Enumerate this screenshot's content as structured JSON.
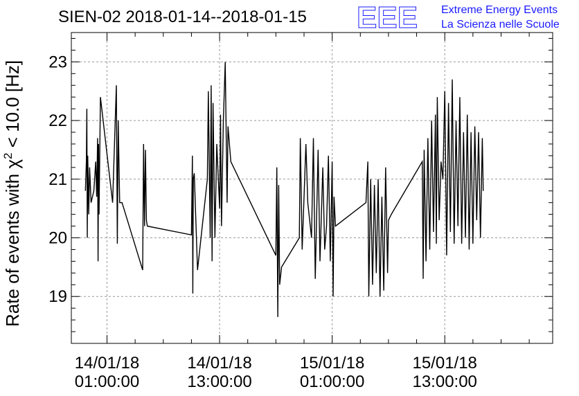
{
  "header": {
    "title": "SIEN-02 2018-01-14--2018-01-15",
    "logo_text": "EEE",
    "logo_line1": "Extreme Energy Events",
    "logo_line2": "La Scienza nelle Scuole",
    "logo_color": "#1a1aff"
  },
  "chart_data": {
    "type": "line",
    "title": "SIEN-02 2018-01-14--2018-01-15",
    "ylabel_prefix": "Rate of events with ",
    "ylabel_chi": "χ",
    "ylabel_sup": "2",
    "ylabel_suffix": " < 10.0 [Hz]",
    "xlabel": "",
    "ylim": [
      18.2,
      23.5
    ],
    "grid": true,
    "line_color": "#000000",
    "x_unit": "hours since 2018-01-14 00:00:00",
    "x_range": [
      -2.8,
      48.5
    ],
    "x_ticks": [
      {
        "x": 1,
        "line1": "14/01/18",
        "line2": "01:00:00"
      },
      {
        "x": 13,
        "line1": "14/01/18",
        "line2": "13:00:00"
      },
      {
        "x": 25,
        "line1": "15/01/18",
        "line2": "01:00:00"
      },
      {
        "x": 37,
        "line1": "15/01/18",
        "line2": "13:00:00"
      }
    ],
    "y_ticks": [
      19,
      20,
      21,
      22,
      23
    ],
    "series": [
      {
        "name": "",
        "points": [
          [
            -1.3,
            20.8
          ],
          [
            -1.2,
            21.3
          ],
          [
            -1.15,
            22.2
          ],
          [
            -1.1,
            20.0
          ],
          [
            -1.05,
            21.4
          ],
          [
            -0.95,
            20.4
          ],
          [
            -0.85,
            21.2
          ],
          [
            -0.7,
            20.6
          ],
          [
            -0.4,
            20.8
          ],
          [
            -0.2,
            21.3
          ],
          [
            -0.1,
            20.7
          ],
          [
            0.0,
            21.7
          ],
          [
            0.05,
            19.6
          ],
          [
            0.1,
            21.6
          ],
          [
            0.15,
            20.4
          ],
          [
            0.3,
            22.4
          ],
          [
            1.6,
            20.6
          ],
          [
            2.0,
            22.6
          ],
          [
            2.1,
            19.9
          ],
          [
            2.2,
            22.0
          ],
          [
            2.35,
            20.6
          ],
          [
            2.6,
            20.6
          ],
          [
            4.8,
            19.45
          ],
          [
            4.9,
            21.6
          ],
          [
            5.0,
            20.2
          ],
          [
            5.1,
            21.5
          ],
          [
            5.2,
            20.3
          ],
          [
            5.3,
            20.2
          ],
          [
            10.0,
            20.05
          ],
          [
            10.1,
            21.4
          ],
          [
            10.15,
            19.05
          ],
          [
            10.2,
            21.0
          ],
          [
            10.3,
            21.1
          ],
          [
            10.65,
            19.45
          ],
          [
            11.7,
            21.0
          ],
          [
            11.8,
            22.5
          ],
          [
            12.0,
            20.0
          ],
          [
            12.1,
            22.6
          ],
          [
            12.2,
            19.6
          ],
          [
            12.3,
            22.3
          ],
          [
            12.5,
            20.0
          ],
          [
            12.7,
            21.6
          ],
          [
            13.0,
            20.5
          ],
          [
            13.1,
            22.1
          ],
          [
            13.2,
            20.2
          ],
          [
            13.4,
            22.0
          ],
          [
            13.6,
            23.0
          ],
          [
            13.8,
            20.6
          ],
          [
            13.9,
            21.9
          ],
          [
            14.2,
            21.3
          ],
          [
            19.0,
            19.7
          ],
          [
            19.1,
            21.2
          ],
          [
            19.2,
            18.65
          ],
          [
            19.3,
            20.9
          ],
          [
            19.4,
            19.2
          ],
          [
            19.6,
            19.5
          ],
          [
            21.5,
            20.0
          ],
          [
            21.6,
            21.7
          ],
          [
            21.8,
            19.8
          ],
          [
            22.2,
            21.6
          ],
          [
            22.4,
            20.6
          ],
          [
            22.8,
            20.0
          ],
          [
            23.0,
            21.7
          ],
          [
            23.2,
            19.3
          ],
          [
            23.5,
            21.5
          ],
          [
            23.7,
            19.6
          ],
          [
            24.0,
            21.2
          ],
          [
            24.2,
            19.8
          ],
          [
            24.4,
            20.2
          ],
          [
            24.6,
            21.4
          ],
          [
            24.8,
            19.6
          ],
          [
            25.0,
            21.3
          ],
          [
            25.1,
            19.0
          ],
          [
            25.2,
            20.7
          ],
          [
            25.35,
            20.2
          ],
          [
            28.6,
            20.6
          ],
          [
            28.8,
            21.3
          ],
          [
            28.9,
            19.0
          ],
          [
            29.1,
            21.0
          ],
          [
            29.3,
            19.2
          ],
          [
            29.5,
            20.9
          ],
          [
            29.7,
            19.4
          ],
          [
            29.9,
            21.0
          ],
          [
            30.1,
            19.0
          ],
          [
            30.3,
            20.7
          ],
          [
            30.5,
            19.1
          ],
          [
            30.7,
            21.2
          ],
          [
            30.9,
            19.4
          ],
          [
            31.0,
            20.3
          ],
          [
            31.3,
            20.4
          ],
          [
            34.6,
            21.3
          ],
          [
            34.7,
            19.3
          ],
          [
            34.8,
            21.5
          ],
          [
            35.0,
            19.6
          ],
          [
            35.2,
            21.7
          ],
          [
            35.4,
            19.8
          ],
          [
            35.6,
            22.0
          ],
          [
            35.8,
            20.1
          ],
          [
            36.0,
            22.1
          ],
          [
            36.1,
            19.9
          ],
          [
            36.2,
            22.4
          ],
          [
            36.4,
            20.3
          ],
          [
            36.6,
            21.3
          ],
          [
            36.8,
            21.0
          ],
          [
            37.0,
            22.5
          ],
          [
            37.2,
            19.7
          ],
          [
            37.4,
            22.3
          ],
          [
            37.6,
            20.1
          ],
          [
            37.8,
            22.7
          ],
          [
            38.0,
            19.9
          ],
          [
            38.2,
            22.0
          ],
          [
            38.4,
            20.2
          ],
          [
            38.6,
            22.4
          ],
          [
            38.8,
            19.9
          ],
          [
            39.0,
            21.8
          ],
          [
            39.2,
            20.0
          ],
          [
            39.4,
            22.1
          ],
          [
            39.6,
            19.8
          ],
          [
            39.8,
            21.8
          ],
          [
            40.0,
            19.9
          ],
          [
            40.2,
            21.9
          ],
          [
            40.4,
            20.3
          ],
          [
            40.6,
            21.8
          ],
          [
            40.8,
            20.0
          ],
          [
            41.0,
            21.7
          ],
          [
            41.1,
            20.8
          ]
        ]
      }
    ]
  }
}
